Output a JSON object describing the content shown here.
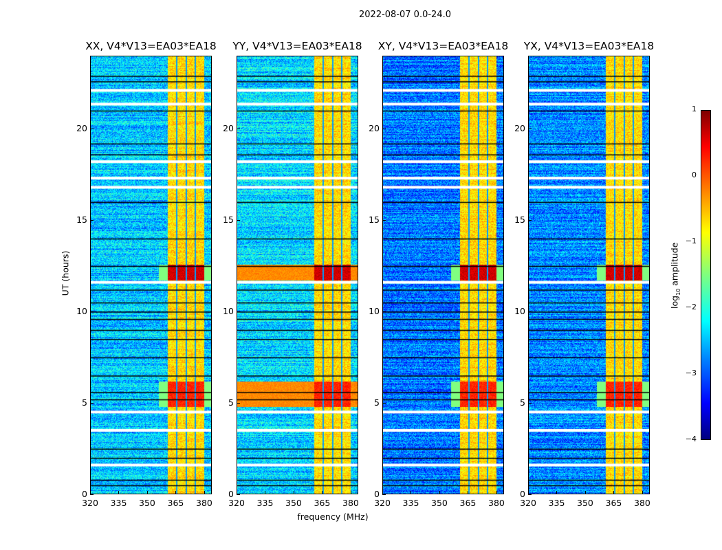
{
  "suptitle": "2022-08-07 0.0-24.0",
  "chart_data": {
    "type": "heatmap",
    "title": "2022-08-07 0.0-24.0",
    "xlabel": "frequency (MHz)",
    "ylabel": "UT (hours)",
    "xlim": [
      320,
      384
    ],
    "ylim": [
      0,
      24
    ],
    "xticks": [
      "320",
      "335",
      "350",
      "365",
      "380"
    ],
    "yticks": [
      "0",
      "5",
      "10",
      "15",
      "20"
    ],
    "colormap": "jet",
    "clim": [
      -4,
      1
    ],
    "colorbar": {
      "label_main": "log",
      "label_sub": "10",
      "label_rest": " amplitude",
      "ticks": [
        "1",
        "0",
        "−1",
        "−2",
        "−3",
        "−4"
      ]
    },
    "panels": [
      {
        "title": "XX, V4*V13=EA03*EA18",
        "off_band_level": -2.4
      },
      {
        "title": "YY, V4*V13=EA03*EA18",
        "off_band_level": -2.3
      },
      {
        "title": "XY, V4*V13=EA03*EA18",
        "off_band_level": -2.8
      },
      {
        "title": "YX, V4*V13=EA03*EA18",
        "off_band_level": -2.7
      }
    ],
    "rfi_band_mhz": [
      360.5,
      380
    ],
    "rfi_band_level": -0.7,
    "strong_rfi_hours": [
      [
        11.7,
        12.6,
        0.6
      ],
      [
        4.8,
        6.2,
        0.2
      ]
    ],
    "flagged_hours_white": [
      22.1,
      21.35,
      18.2,
      17.3,
      16.8,
      11.6,
      4.5,
      3.5,
      1.6
    ],
    "dropout_hours_black": [
      22.9,
      22.6,
      21.0,
      19.2,
      18.6,
      16.0,
      14.0,
      12.5,
      11.2,
      10.5,
      10.0,
      9.6,
      9.0,
      8.5,
      7.5,
      6.5,
      5.6,
      5.2,
      2.5,
      2.0,
      0.8,
      0.5
    ]
  }
}
